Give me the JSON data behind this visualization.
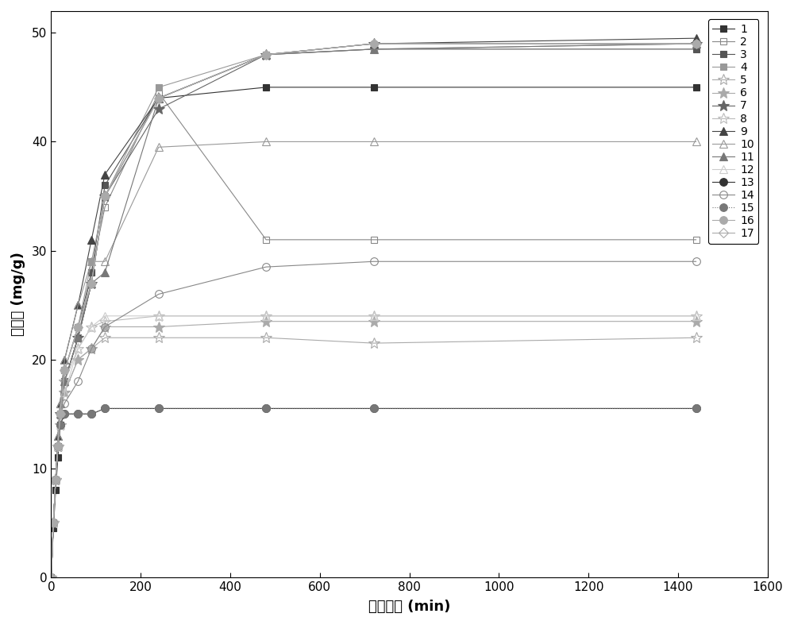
{
  "title": "",
  "xlabel": "吸附时间 (min)",
  "ylabel": "吸附量 (mg/g)",
  "xlim": [
    0,
    1600
  ],
  "ylim": [
    0,
    52
  ],
  "xticks": [
    0,
    200,
    400,
    600,
    800,
    1000,
    1200,
    1400,
    1600
  ],
  "yticks": [
    0,
    10,
    20,
    30,
    40,
    50
  ],
  "time_points": [
    0,
    5,
    10,
    15,
    20,
    30,
    60,
    90,
    120,
    240,
    480,
    720,
    1440
  ],
  "series": [
    {
      "label": "1",
      "marker": "s",
      "fillstyle": "full",
      "color": "#333333",
      "linestyle": "-",
      "values": [
        0,
        4.5,
        8,
        11,
        14,
        18,
        22,
        27,
        35,
        44,
        45,
        45,
        45
      ]
    },
    {
      "label": "2",
      "marker": "s",
      "fillstyle": "none",
      "color": "#888888",
      "linestyle": "-",
      "values": [
        0,
        5,
        9,
        12,
        15,
        18,
        22,
        28,
        34,
        44.5,
        31,
        31,
        31
      ]
    },
    {
      "label": "3",
      "marker": "s",
      "fillstyle": "full",
      "color": "#555555",
      "linestyle": "-",
      "values": [
        0,
        5,
        9,
        12,
        15,
        19,
        23,
        28,
        36,
        44,
        48,
        48.5,
        48.5
      ]
    },
    {
      "label": "4",
      "marker": "s",
      "fillstyle": "full",
      "color": "#999999",
      "linestyle": "-",
      "values": [
        0,
        5,
        9,
        12,
        15,
        19,
        23,
        29,
        35,
        45,
        48,
        48.5,
        49
      ]
    },
    {
      "label": "5",
      "marker": "*",
      "fillstyle": "none",
      "color": "#aaaaaa",
      "linestyle": "-",
      "values": [
        0,
        5,
        9,
        12,
        14,
        17,
        20,
        21,
        22,
        22,
        22,
        21.5,
        22
      ]
    },
    {
      "label": "6",
      "marker": "*",
      "fillstyle": "full",
      "color": "#aaaaaa",
      "linestyle": "-",
      "values": [
        0,
        5,
        9,
        12,
        14,
        17,
        20,
        21,
        23,
        23,
        23.5,
        23.5,
        23.5
      ]
    },
    {
      "label": "7",
      "marker": "*",
      "fillstyle": "full",
      "color": "#666666",
      "linestyle": "-",
      "values": [
        0,
        5,
        9,
        12,
        15,
        18,
        22,
        27,
        35,
        43,
        48,
        49,
        49
      ]
    },
    {
      "label": "8",
      "marker": "*",
      "fillstyle": "none",
      "color": "#bbbbbb",
      "linestyle": "-",
      "values": [
        0,
        5,
        9,
        12,
        14,
        18,
        21,
        23,
        23.5,
        24,
        24,
        24,
        24
      ]
    },
    {
      "label": "9",
      "marker": "^",
      "fillstyle": "full",
      "color": "#444444",
      "linestyle": "-",
      "values": [
        0,
        5,
        9,
        13,
        16,
        20,
        25,
        31,
        37,
        44,
        48,
        49,
        49.5
      ]
    },
    {
      "label": "10",
      "marker": "^",
      "fillstyle": "none",
      "color": "#999999",
      "linestyle": "-",
      "values": [
        0,
        5,
        9,
        13,
        16,
        20,
        25,
        29,
        29,
        39.5,
        40,
        40,
        40
      ]
    },
    {
      "label": "11",
      "marker": "^",
      "fillstyle": "full",
      "color": "#777777",
      "linestyle": "-",
      "values": [
        0,
        5,
        9,
        12,
        15,
        18,
        22,
        27,
        28,
        44,
        48,
        48.5,
        49
      ]
    },
    {
      "label": "12",
      "marker": "^",
      "fillstyle": "none",
      "color": "#cccccc",
      "linestyle": "-",
      "values": [
        0,
        5,
        9,
        12,
        14,
        17,
        21,
        23,
        24,
        24,
        24,
        24,
        24
      ]
    },
    {
      "label": "13",
      "marker": "o",
      "fillstyle": "full",
      "color": "#333333",
      "linestyle": "-",
      "values": [
        0,
        5,
        9,
        12,
        14,
        15,
        15,
        15,
        15.5,
        15.5,
        15.5,
        15.5,
        15.5
      ]
    },
    {
      "label": "14",
      "marker": "o",
      "fillstyle": "none",
      "color": "#888888",
      "linestyle": "-",
      "values": [
        0,
        5,
        9,
        12,
        15,
        16,
        18,
        21,
        23,
        26,
        28.5,
        29,
        29
      ]
    },
    {
      "label": "15",
      "marker": "o",
      "fillstyle": "full",
      "color": "#777777",
      "linestyle": ":",
      "values": [
        0,
        5,
        9,
        12,
        14,
        15,
        15,
        15,
        15.5,
        15.5,
        15.5,
        15.5,
        15.5
      ]
    },
    {
      "label": "16",
      "marker": "o",
      "fillstyle": "full",
      "color": "#aaaaaa",
      "linestyle": "-",
      "values": [
        0,
        5,
        9,
        12,
        15,
        19,
        23,
        27,
        35,
        44,
        48,
        49,
        49
      ]
    },
    {
      "label": "17",
      "marker": "D",
      "fillstyle": "none",
      "color": "#aaaaaa",
      "linestyle": "-",
      "values": [
        0,
        5,
        9,
        12,
        15,
        19,
        23,
        27,
        35,
        44,
        48,
        49,
        49
      ]
    }
  ]
}
